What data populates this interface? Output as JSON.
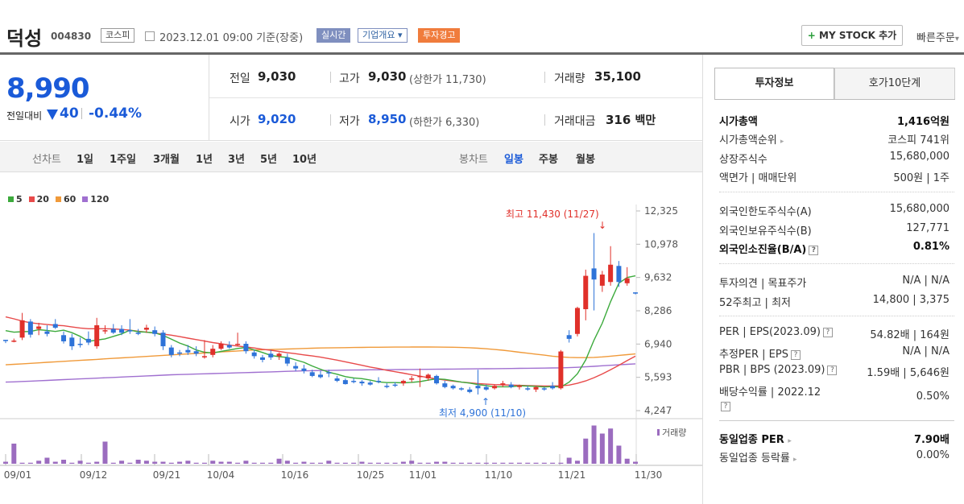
{
  "header": {
    "name": "덕성",
    "code": "004830",
    "market": "코스피",
    "datetime": "2023.12.01 09:00",
    "basis": "기준(장중)",
    "realtime_tag": "실시간",
    "company_tag": "기업개요",
    "company_caret": "▾",
    "warning_tag": "투자경고",
    "mystock_plus": "+",
    "mystock_label": "MY STOCK 추가",
    "quick_order": "빠른주문",
    "quick_caret": "▾"
  },
  "price": {
    "current": "8,990",
    "change_label": "전일대비",
    "change_value": "40",
    "change_rate": "-0.44%"
  },
  "stats": {
    "prev_label": "전일",
    "prev_value": "9,030",
    "high_label": "고가",
    "high_value": "9,030",
    "upper_limit": "(상한가 11,730)",
    "volume_label": "거래량",
    "volume_value": "35,100",
    "open_label": "시가",
    "open_value": "9,020",
    "low_label": "저가",
    "low_value": "8,950",
    "lower_limit": "(하한가 6,330)",
    "amount_label": "거래대금",
    "amount_value": "316",
    "amount_unit": "백만"
  },
  "periods": {
    "line_label": "선차트",
    "line_items": [
      "1일",
      "1주일",
      "3개월",
      "1년",
      "3년",
      "5년",
      "10년"
    ],
    "candle_label": "봉차트",
    "candle_items": [
      "일봉",
      "주봉",
      "월봉"
    ],
    "selected_candle": "일봉"
  },
  "legend": [
    {
      "label": "5",
      "color": "#3caa3c"
    },
    {
      "label": "20",
      "color": "#e84a4a"
    },
    {
      "label": "60",
      "color": "#f09a3a"
    },
    {
      "label": "120",
      "color": "#a070d0"
    }
  ],
  "chart_data": {
    "type": "candlestick",
    "y_ticks": [
      "12,325",
      "10,978",
      "9,632",
      "8,286",
      "6,940",
      "5,593",
      "4,247"
    ],
    "x_ticks": [
      "09/01",
      "09/12",
      "09/21",
      "10/04",
      "10/16",
      "10/25",
      "11/01",
      "11/10",
      "11/21",
      "11/30"
    ],
    "high_annotation": "최고 11,430 (11/27)",
    "low_annotation": "최저 4,900 (11/10)",
    "volume_label": "거래량",
    "high_marker": "↓",
    "low_marker": "↑",
    "ylim": [
      4247,
      12325
    ],
    "candles": [
      [
        7110,
        7110,
        6980,
        7060
      ],
      [
        7060,
        7160,
        7010,
        7080
      ],
      [
        7200,
        8200,
        7100,
        7900
      ],
      [
        7850,
        7950,
        7200,
        7320
      ],
      [
        7550,
        7800,
        7300,
        7650
      ],
      [
        7450,
        7700,
        7250,
        7350
      ],
      [
        7750,
        7950,
        7550,
        7600
      ],
      [
        7300,
        7450,
        6960,
        7050
      ],
      [
        7200,
        7350,
        6700,
        6850
      ],
      [
        6950,
        7200,
        6800,
        6900
      ],
      [
        7150,
        7450,
        6900,
        7000
      ],
      [
        6850,
        8000,
        6750,
        7700
      ],
      [
        7450,
        7700,
        7350,
        7500
      ],
      [
        7550,
        7750,
        7350,
        7400
      ],
      [
        7550,
        7700,
        7300,
        7400
      ],
      [
        7500,
        7950,
        7350,
        7450
      ],
      [
        7400,
        7550,
        7300,
        7350
      ],
      [
        7520,
        7720,
        7400,
        7600
      ],
      [
        7500,
        7650,
        7250,
        7350
      ],
      [
        7400,
        7500,
        6700,
        6850
      ],
      [
        6800,
        6900,
        6400,
        6500
      ],
      [
        6600,
        6700,
        6450,
        6550
      ],
      [
        6700,
        6900,
        6500,
        6600
      ],
      [
        6650,
        6850,
        6450,
        6550
      ],
      [
        6400,
        7100,
        6350,
        6450
      ],
      [
        6500,
        6900,
        6400,
        6750
      ],
      [
        6750,
        7050,
        6700,
        6950
      ],
      [
        6900,
        7050,
        6750,
        6800
      ],
      [
        6950,
        7400,
        6850,
        6950
      ],
      [
        6950,
        7050,
        6550,
        6650
      ],
      [
        6600,
        6700,
        6350,
        6450
      ],
      [
        6400,
        6500,
        6200,
        6300
      ],
      [
        6550,
        6700,
        6300,
        6400
      ],
      [
        6450,
        6600,
        6300,
        6550
      ],
      [
        6400,
        6550,
        6050,
        6150
      ],
      [
        6050,
        6200,
        5850,
        5950
      ],
      [
        5950,
        6100,
        5750,
        5850
      ],
      [
        5800,
        5900,
        5600,
        5650
      ],
      [
        5700,
        5850,
        5550,
        5600
      ],
      [
        5800,
        5900,
        5600,
        5750
      ],
      [
        5550,
        5650,
        5400,
        5450
      ],
      [
        5480,
        5550,
        5300,
        5320
      ],
      [
        5450,
        5550,
        5350,
        5420
      ],
      [
        5420,
        5480,
        5250,
        5350
      ],
      [
        5380,
        5450,
        5260,
        5300
      ],
      [
        5450,
        5600,
        5350,
        5420
      ],
      [
        5250,
        5350,
        5150,
        5200
      ],
      [
        5300,
        5400,
        5200,
        5280
      ],
      [
        5350,
        5500,
        5250,
        5450
      ],
      [
        5500,
        5650,
        5400,
        5550
      ],
      [
        5600,
        5950,
        5200,
        5650
      ],
      [
        5550,
        5750,
        5450,
        5700
      ],
      [
        5650,
        5700,
        5300,
        5350
      ],
      [
        5350,
        5450,
        5150,
        5200
      ],
      [
        5250,
        5300,
        5100,
        5150
      ],
      [
        5150,
        5200,
        5050,
        5100
      ],
      [
        5100,
        5200,
        4950,
        5000
      ],
      [
        5250,
        5900,
        4900,
        5150
      ],
      [
        5200,
        5300,
        5050,
        5100
      ],
      [
        5150,
        5300,
        5100,
        5250
      ],
      [
        5300,
        5450,
        5200,
        5350
      ],
      [
        5300,
        5400,
        5150,
        5200
      ],
      [
        5200,
        5300,
        5100,
        5250
      ],
      [
        5150,
        5250,
        5050,
        5100
      ],
      [
        5100,
        5250,
        5000,
        5200
      ],
      [
        5150,
        5200,
        5050,
        5100
      ],
      [
        5250,
        5400,
        5100,
        5150
      ],
      [
        5150,
        6700,
        5100,
        6640
      ],
      [
        7300,
        7500,
        7000,
        7150
      ],
      [
        7350,
        8450,
        7250,
        8400
      ],
      [
        8350,
        9950,
        7900,
        9700
      ],
      [
        10000,
        11430,
        8300,
        9550
      ],
      [
        9300,
        9900,
        9050,
        9750
      ],
      [
        9450,
        10900,
        9300,
        10150
      ],
      [
        10100,
        10300,
        9250,
        9450
      ],
      [
        9400,
        10050,
        9300,
        9600
      ],
      [
        9030,
        9030,
        8950,
        8990
      ]
    ],
    "volume": [
      2,
      20,
      1,
      1,
      3,
      6,
      2,
      4,
      1,
      3,
      1,
      2,
      22,
      1,
      3,
      1,
      4,
      3,
      2,
      2,
      1,
      2,
      3,
      1,
      1,
      3,
      2,
      2,
      1,
      3,
      1,
      1,
      1,
      5,
      3,
      1,
      2,
      1,
      1,
      3,
      1,
      1,
      1,
      2,
      1,
      1,
      1,
      1,
      2,
      3,
      1,
      1,
      2,
      2,
      1,
      1,
      1,
      1,
      1,
      1,
      1,
      1,
      1,
      1,
      1,
      1,
      1,
      1,
      6,
      3,
      25,
      38,
      30,
      35,
      18,
      5,
      2
    ],
    "ma5": [
      7480,
      7420,
      7440,
      7450,
      7520,
      7490,
      7450,
      7500,
      7400,
      7250,
      7050,
      7100,
      7150,
      7250,
      7350,
      7500,
      7440,
      7420,
      7390,
      7290,
      7140,
      6980,
      6860,
      6700,
      6610,
      6580,
      6640,
      6700,
      6760,
      6800,
      6700,
      6600,
      6480,
      6430,
      6400,
      6300,
      6200,
      6050,
      5920,
      5800,
      5720,
      5620,
      5570,
      5540,
      5480,
      5410,
      5380,
      5380,
      5370,
      5390,
      5420,
      5480,
      5530,
      5510,
      5460,
      5400,
      5360,
      5300,
      5260,
      5210,
      5210,
      5210,
      5250,
      5240,
      5230,
      5200,
      5220,
      5200,
      5400,
      5740,
      6300,
      7100,
      7780,
      8650,
      9400,
      9630,
      9700
    ],
    "ma20": [
      8040,
      7960,
      7870,
      7800,
      7760,
      7730,
      7700,
      7680,
      7630,
      7590,
      7560,
      7560,
      7560,
      7550,
      7530,
      7500,
      7460,
      7420,
      7380,
      7340,
      7300,
      7240,
      7180,
      7120,
      7060,
      7000,
      6950,
      6900,
      6860,
      6820,
      6780,
      6730,
      6690,
      6640,
      6590,
      6550,
      6500,
      6460,
      6410,
      6350,
      6290,
      6220,
      6150,
      6080,
      6010,
      5950,
      5880,
      5820,
      5760,
      5700,
      5640,
      5580,
      5530,
      5480,
      5440,
      5400,
      5370,
      5340,
      5320,
      5300,
      5290,
      5280,
      5270,
      5260,
      5250,
      5240,
      5240,
      5250,
      5280,
      5350,
      5450,
      5580,
      5730,
      5900,
      6080,
      6270,
      6450
    ],
    "ma60": [
      6100,
      6120,
      6140,
      6160,
      6180,
      6200,
      6220,
      6240,
      6260,
      6280,
      6300,
      6320,
      6340,
      6360,
      6380,
      6400,
      6420,
      6440,
      6460,
      6480,
      6500,
      6520,
      6540,
      6560,
      6580,
      6600,
      6620,
      6640,
      6660,
      6680,
      6700,
      6710,
      6720,
      6730,
      6740,
      6750,
      6760,
      6770,
      6780,
      6785,
      6790,
      6795,
      6800,
      6805,
      6810,
      6812,
      6815,
      6817,
      6818,
      6820,
      6820,
      6820,
      6818,
      6815,
      6810,
      6800,
      6790,
      6770,
      6750,
      6720,
      6690,
      6650,
      6610,
      6570,
      6530,
      6490,
      6450,
      6420,
      6400,
      6390,
      6390,
      6400,
      6420,
      6450,
      6480,
      6510,
      6540
    ],
    "ma120": [
      5400,
      5410,
      5425,
      5440,
      5455,
      5470,
      5485,
      5500,
      5515,
      5530,
      5545,
      5560,
      5575,
      5590,
      5605,
      5620,
      5635,
      5650,
      5665,
      5680,
      5695,
      5705,
      5715,
      5725,
      5735,
      5745,
      5755,
      5765,
      5775,
      5785,
      5795,
      5805,
      5815,
      5825,
      5835,
      5845,
      5855,
      5862,
      5868,
      5874,
      5880,
      5885,
      5889,
      5893,
      5897,
      5900,
      5903,
      5906,
      5909,
      5912,
      5915,
      5918,
      5921,
      5924,
      5927,
      5930,
      5933,
      5936,
      5940,
      5944,
      5948,
      5952,
      5956,
      5960,
      5964,
      5968,
      5972,
      5976,
      5985,
      6000,
      6020,
      6040,
      6060,
      6080,
      6100,
      6120,
      6140
    ]
  },
  "right": {
    "tab1": "투자정보",
    "tab2": "호가10단계",
    "marketcap_label": "시가총액",
    "marketcap_value": "1,416억원",
    "rank_label": "시가총액순위",
    "rank_arrow": "▸",
    "rank_value": "코스피 741위",
    "shares_label": "상장주식수",
    "shares_value": "15,680,000",
    "par_label": "액면가 | 매매단위",
    "par_value": "500원 | 1주",
    "foreign_limit_label": "외국인한도주식수(A)",
    "foreign_limit_value": "15,680,000",
    "foreign_hold_label": "외국인보유주식수(B)",
    "foreign_hold_value": "127,771",
    "foreign_rate_label": "외국인소진율(B/A)",
    "foreign_rate_value": "0.81%",
    "opinion_label": "투자의견 | 목표주가",
    "opinion_value": "N/A | N/A",
    "w52_label": "52주최고 | 최저",
    "w52_value": "14,800 | 3,375",
    "per_label": "PER | EPS(2023.09)",
    "per_value": "54.82배 | 164원",
    "est_label": "추정PER | EPS",
    "est_value": "N/A | N/A",
    "pbr_label": "PBR | BPS (2023.09)",
    "pbr_value": "1.59배 | 5,646원",
    "div_label": "배당수익률 | 2022.12",
    "div_value": "0.50%",
    "peer_per_label": "동일업종 PER",
    "peer_per_arrow": "▸",
    "peer_per_value": "7.90배",
    "peer_rate_label": "동일업종 등락률",
    "peer_rate_arrow": "▸",
    "peer_rate_value": "0.00%",
    "help": "?"
  }
}
